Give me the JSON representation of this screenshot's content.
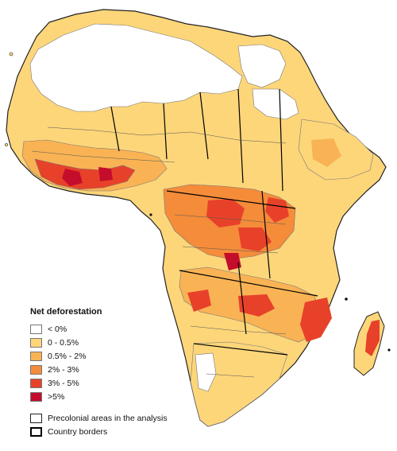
{
  "legend": {
    "title": "Net deforestation",
    "classes": [
      {
        "label": "< 0%",
        "color": "#ffffff"
      },
      {
        "label": "0 - 0.5%",
        "color": "#fdd67a"
      },
      {
        "label": "0.5% - 2%",
        "color": "#f9b354"
      },
      {
        "label": "2% - 3%",
        "color": "#f48c3a"
      },
      {
        "label": "3% - 5%",
        "color": "#e8412a"
      },
      {
        "label": ">5%",
        "color": "#c40d2a"
      }
    ],
    "precolonial_label": "Precolonial areas in the analysis",
    "country_label": "Country borders"
  },
  "colors": {
    "land_base": "#fdd67a",
    "internal_lines": "#555555",
    "country_lines": "#000000"
  }
}
